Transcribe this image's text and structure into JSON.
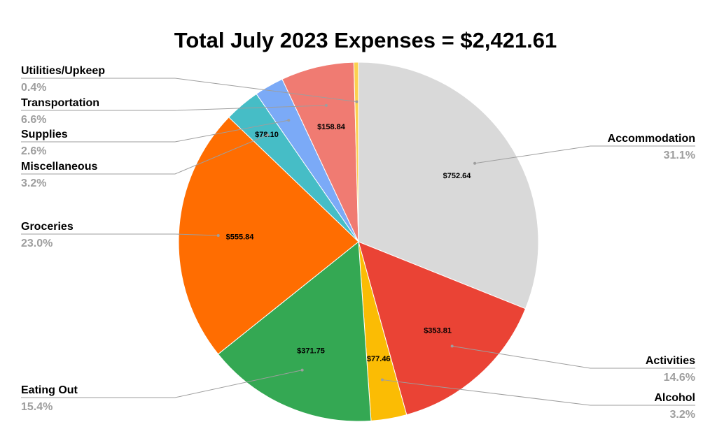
{
  "chart_data": {
    "type": "pie",
    "title": "Total July 2023 Expenses = $2,421.61",
    "slices": [
      {
        "name": "Accommodation",
        "value": 752.64,
        "value_label": "$752.64",
        "percent_label": "31.1%",
        "color": "#d9d9d9"
      },
      {
        "name": "Activities",
        "value": 353.81,
        "value_label": "$353.81",
        "percent_label": "14.6%",
        "color": "#ea4335"
      },
      {
        "name": "Alcohol",
        "value": 77.46,
        "value_label": "$77.46",
        "percent_label": "3.2%",
        "color": "#fbbc04"
      },
      {
        "name": "Eating Out",
        "value": 371.75,
        "value_label": "$371.75",
        "percent_label": "15.4%",
        "color": "#34a853"
      },
      {
        "name": "Groceries",
        "value": 555.84,
        "value_label": "$555.84",
        "percent_label": "23.0%",
        "color": "#ff6d01"
      },
      {
        "name": "Miscellaneous",
        "value": 77.49,
        "value_label": "",
        "percent_label": "3.2%",
        "color": "#46bdc6"
      },
      {
        "name": "Supplies",
        "value": 63.78,
        "value_label": "",
        "percent_label": "2.6%",
        "color": "#7baaf7"
      },
      {
        "name": "Transportation",
        "value": 158.84,
        "value_label": "$158.84",
        "percent_label": "6.6%",
        "color": "#f07b72"
      },
      {
        "name": "Utilities/Upkeep",
        "value": 10.0,
        "value_label": "",
        "percent_label": "0.4%",
        "color": "#fcd04f"
      }
    ],
    "extra_value_labels": [
      "$78.10"
    ],
    "legend": "none"
  }
}
